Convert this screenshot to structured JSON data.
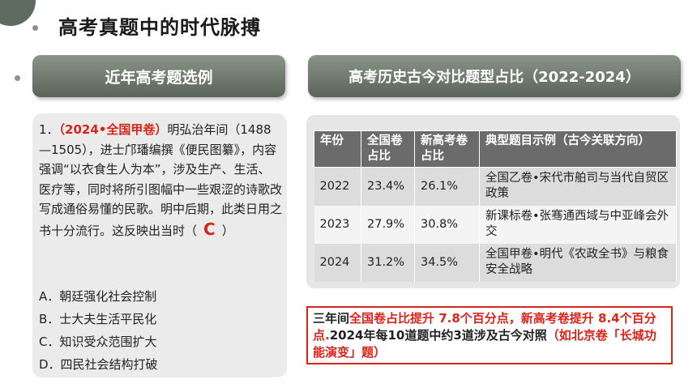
{
  "page_title": "高考真题中的时代脉搏",
  "left_header": "近年高考题选例",
  "right_header": "高考历史古今对比题型占比（2022-2024）",
  "question": {
    "number": "1．",
    "source": "（2024•全国甲卷）",
    "stem": "明弘治年间（1488—1505），进士邝璠编撰《便民图纂》，内容强调“以衣食生人为本”，涉及生产、生活、医疗等，同时将所引图幅中一些艰涩的诗歌改写成通俗易懂的民歌。明中后期，此类日用之书十分流行。这反映出当时（",
    "answer": "C",
    "stem_end": "）",
    "options": [
      "A．朝廷强化社会控制",
      "B．士大夫生活平民化",
      "C．知识受众范围扩大",
      "D．四民社会结构打破"
    ]
  },
  "table": {
    "headers": [
      "年份",
      "全国卷占比",
      "新高考卷占比",
      "典型题目示例（古今关联方向）"
    ],
    "rows": [
      [
        "2022",
        "23.4%",
        "26.1%",
        "全国乙卷•宋代市舶司与当代自贸区政策"
      ],
      [
        "2023",
        "27.9%",
        "30.8%",
        "新课标卷•张骞通西域与中亚峰会外交"
      ],
      [
        "2024",
        "31.2%",
        "34.5%",
        "全国甲卷•明代《农政全书》与粮食安全战略"
      ]
    ]
  },
  "summary": {
    "p1": "三年间",
    "p2": "全国卷占比提升 7.8个百分点，新高考卷提升 8.4个百分点.",
    "p3": "2024年每10道题中约3道涉及古今对照",
    "p4": "（如北京卷「长城功能演变」题）"
  },
  "colors": {
    "accent_red": "#d9241c",
    "header_grey": "#6b6b6b",
    "panel_green_grey": "#5f6a60"
  }
}
